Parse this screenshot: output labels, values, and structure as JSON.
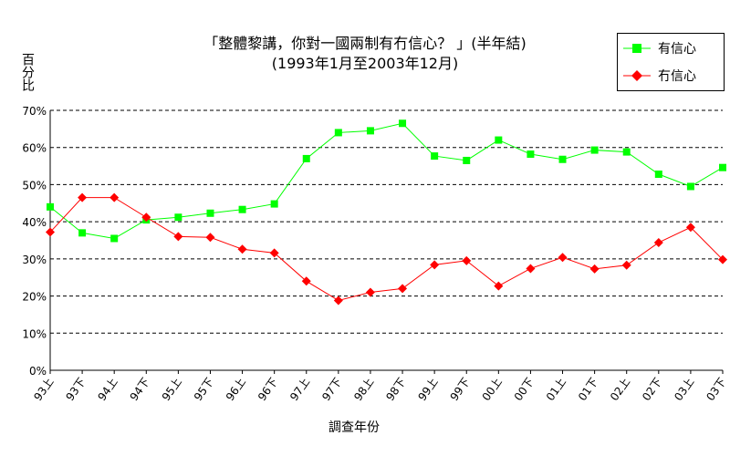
{
  "chart_data": {
    "type": "line",
    "title": "「整體黎講，你對一國兩制有冇信心？ 」(半年結)",
    "subtitle": "(1993年1月至2003年12月)",
    "xlabel": "調查年份",
    "ylabel": "百分比",
    "ylim": [
      0,
      70
    ],
    "yticks": [
      "0%",
      "10%",
      "20%",
      "30%",
      "40%",
      "50%",
      "60%",
      "70%"
    ],
    "grid": true,
    "legend_position": "top-right",
    "categories": [
      "93上",
      "93下",
      "94上",
      "94下",
      "95上",
      "95下",
      "96上",
      "96下",
      "97上",
      "97下",
      "98上",
      "98下",
      "99上",
      "99下",
      "00上",
      "00下",
      "01上",
      "01下",
      "02上",
      "02下",
      "03上",
      "03下"
    ],
    "series": [
      {
        "name": "有信心",
        "color": "#00ff00",
        "marker": "square",
        "values": [
          44.0,
          37.0,
          35.5,
          40.5,
          41.2,
          42.3,
          43.3,
          44.8,
          57.0,
          64.0,
          64.5,
          66.5,
          57.7,
          56.5,
          62.0,
          58.2,
          56.8,
          59.3,
          58.8,
          52.8,
          49.5,
          54.6
        ]
      },
      {
        "name": "冇信心",
        "color": "#ff0000",
        "marker": "diamond",
        "values": [
          37.2,
          46.5,
          46.5,
          41.2,
          36.0,
          35.8,
          32.6,
          31.6,
          24.0,
          18.8,
          21.0,
          22.0,
          28.4,
          29.5,
          22.7,
          27.4,
          30.4,
          27.3,
          28.3,
          34.4,
          38.5,
          29.8
        ]
      }
    ]
  }
}
